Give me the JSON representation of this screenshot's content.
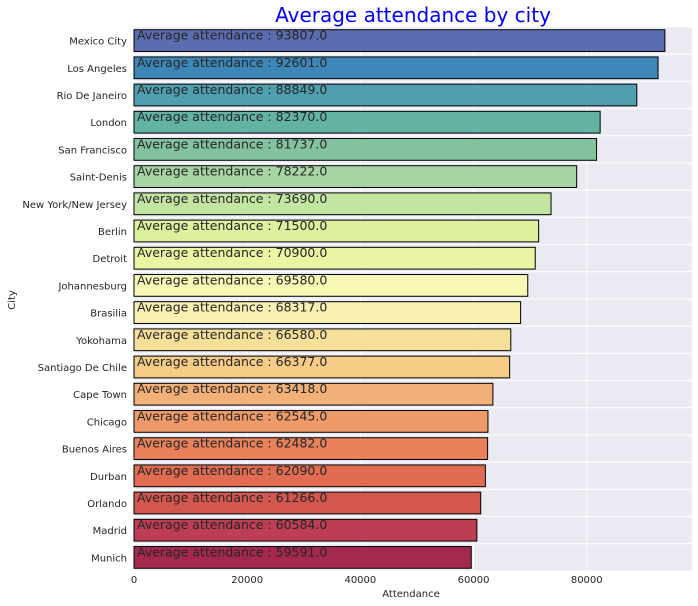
{
  "chart_data": {
    "type": "bar",
    "orientation": "horizontal",
    "title": "Average attendance by city",
    "title_color": "#0000ff",
    "xlabel": "Attendance",
    "ylabel": "City",
    "xlim": [
      0,
      98600
    ],
    "x_ticks": [
      0,
      20000,
      40000,
      60000,
      80000
    ],
    "x_tick_labels": [
      "0",
      "20000",
      "40000",
      "60000",
      "80000"
    ],
    "grid": true,
    "background": "#eaeaf2",
    "label_prefix": "Average attendance  : ",
    "categories": [
      "Mexico City",
      "Los Angeles",
      "Rio De Janeiro",
      "London",
      "San Francisco",
      "Saint-Denis",
      "New York/New Jersey",
      "Berlin",
      "Detroit",
      "Johannesburg",
      "Brasilia",
      "Yokohama",
      "Santiago De Chile",
      "Cape Town",
      "Chicago",
      "Buenos Aires",
      "Durban",
      "Orlando",
      "Madrid",
      "Munich"
    ],
    "values": [
      93807.0,
      92601.0,
      88849.0,
      82370.0,
      81737.0,
      78222.0,
      73690.0,
      71500.0,
      70900.0,
      69580.0,
      68317.0,
      66580.0,
      66377.0,
      63418.0,
      62545.0,
      62482.0,
      62090.0,
      61266.0,
      60584.0,
      59591.0
    ],
    "data_labels": [
      "Average attendance  : 93807.0",
      "Average attendance  : 92601.0",
      "Average attendance  : 88849.0",
      "Average attendance  : 82370.0",
      "Average attendance  : 81737.0",
      "Average attendance  : 78222.0",
      "Average attendance  : 73690.0",
      "Average attendance  : 71500.0",
      "Average attendance  : 70900.0",
      "Average attendance  : 69580.0",
      "Average attendance  : 68317.0",
      "Average attendance  : 66580.0",
      "Average attendance  : 66377.0",
      "Average attendance  : 63418.0",
      "Average attendance  : 62545.0",
      "Average attendance  : 62482.0",
      "Average attendance  : 62090.0",
      "Average attendance  : 61266.0",
      "Average attendance  : 60584.0",
      "Average attendance  : 59591.0"
    ],
    "colors": [
      "#5a6db0",
      "#3d87b8",
      "#4f9fb0",
      "#63b3a3",
      "#83c29f",
      "#a8d5a4",
      "#c3e5a2",
      "#dcf09d",
      "#ebf4a2",
      "#f8f7b6",
      "#f8f0b0",
      "#f6df99",
      "#f5cb86",
      "#f0b077",
      "#ee9b69",
      "#e8805a",
      "#e06c52",
      "#d4574f",
      "#bd3e54",
      "#a4294c"
    ]
  }
}
